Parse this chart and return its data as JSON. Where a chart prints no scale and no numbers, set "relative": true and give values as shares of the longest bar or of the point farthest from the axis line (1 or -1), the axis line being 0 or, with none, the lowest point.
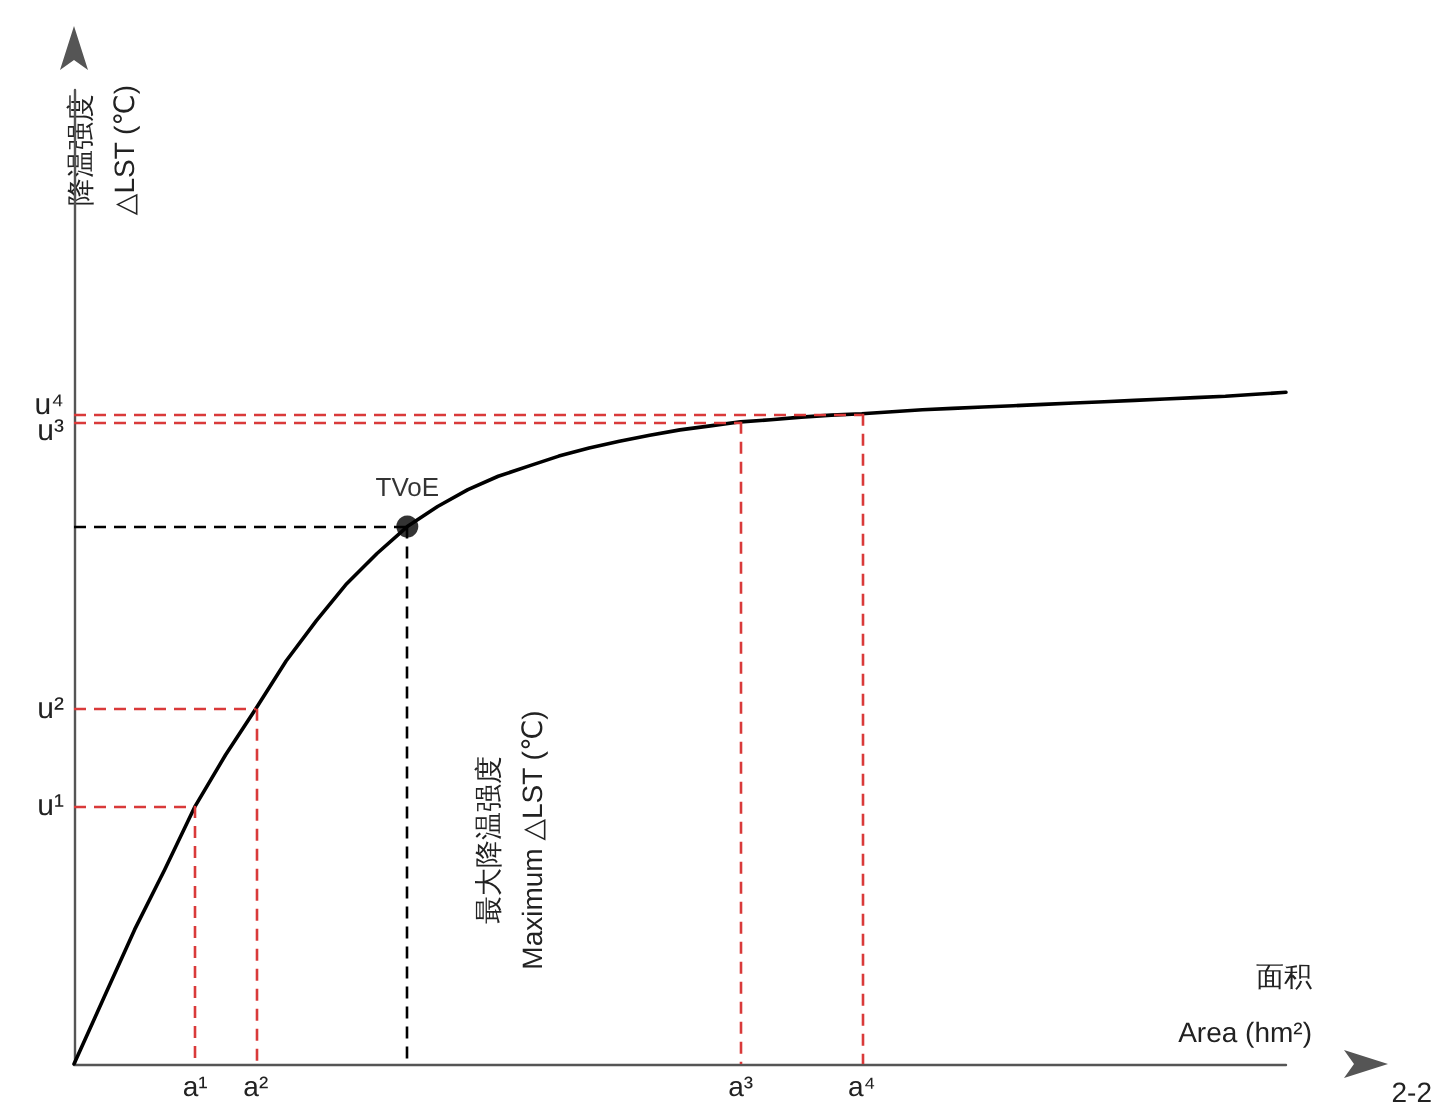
{
  "chart_data": {
    "type": "line",
    "relative": true,
    "color": "#000000",
    "xlabel": "面积\nArea (hm²)",
    "categories": [
      null,
      null,
      null,
      null,
      "a¹",
      null,
      "a²",
      null,
      null,
      null,
      null,
      null,
      null,
      null,
      null,
      null,
      null,
      null,
      null,
      null,
      null,
      null,
      "a³",
      null,
      null,
      null,
      "a⁴",
      null,
      null,
      null,
      null,
      null,
      null,
      null,
      null,
      null,
      null,
      null,
      null,
      null,
      null
    ],
    "series": [
      {
        "marker": "none",
        "values": [
          0,
          0.1,
          0.2,
          0.29,
          0.384,
          0.46,
          0.529,
          0.6,
          0.66,
          0.715,
          0.76,
          0.8,
          0.83,
          0.855,
          0.875,
          0.89,
          0.905,
          0.917,
          0.927,
          0.936,
          0.944,
          0.95,
          0.956,
          0.959,
          0.963,
          0.966,
          0.968,
          0.971,
          0.974,
          0.976,
          0.978,
          0.98,
          0.982,
          0.984,
          0.986,
          0.988,
          0.99,
          0.992,
          0.994,
          0.997,
          1.0
        ]
      },
      {
        "type": "scatter",
        "name": "TVoE",
        "color": "#000000",
        "marker": "circle",
        "values": [
          null,
          null,
          null,
          null,
          null,
          null,
          null,
          null,
          null,
          null,
          null,
          0.8,
          null,
          null,
          null,
          null,
          null,
          null,
          null,
          null,
          null,
          null,
          null,
          null,
          null,
          null,
          null,
          null,
          null,
          null,
          null,
          null,
          null,
          null,
          null,
          null,
          null,
          null,
          null,
          null,
          null
        ]
      }
    ],
    "ref_lines": [
      {
        "axis": "y",
        "value": 0.384,
        "label": "u¹",
        "color": "#d93a3a",
        "line_style": "dashed"
      },
      {
        "axis": "y",
        "value": 0.529,
        "label": "u²",
        "color": "#d93a3a",
        "line_style": "dashed"
      },
      {
        "axis": "y",
        "value": 0.956,
        "label": "u³",
        "color": "#d93a3a",
        "line_style": "dashed"
      },
      {
        "axis": "y",
        "value": 0.968,
        "label": "u⁴",
        "color": "#d93a3a",
        "line_style": "dashed"
      },
      {
        "axis": "y",
        "value": 0.8,
        "label": null,
        "color": "#000000",
        "line_style": "dashed"
      },
      {
        "axis": "x",
        "value": "a¹",
        "label": null,
        "color": "#d93a3a",
        "line_style": "dashed"
      },
      {
        "axis": "x",
        "value": "a²",
        "label": null,
        "color": "#d93a3a",
        "line_style": "dashed"
      },
      {
        "axis": "x",
        "value": "a³",
        "label": null,
        "color": "#d93a3a",
        "line_style": "dashed"
      },
      {
        "axis": "x",
        "value": "a⁴",
        "label": null,
        "color": "#d93a3a",
        "line_style": "dashed"
      }
    ],
    "annotations": [
      "降温强度\n△LST (℃)",
      "最大降温强度\nMaximum △LST (℃)",
      "2-2"
    ],
    "grid": false,
    "legend": false
  }
}
